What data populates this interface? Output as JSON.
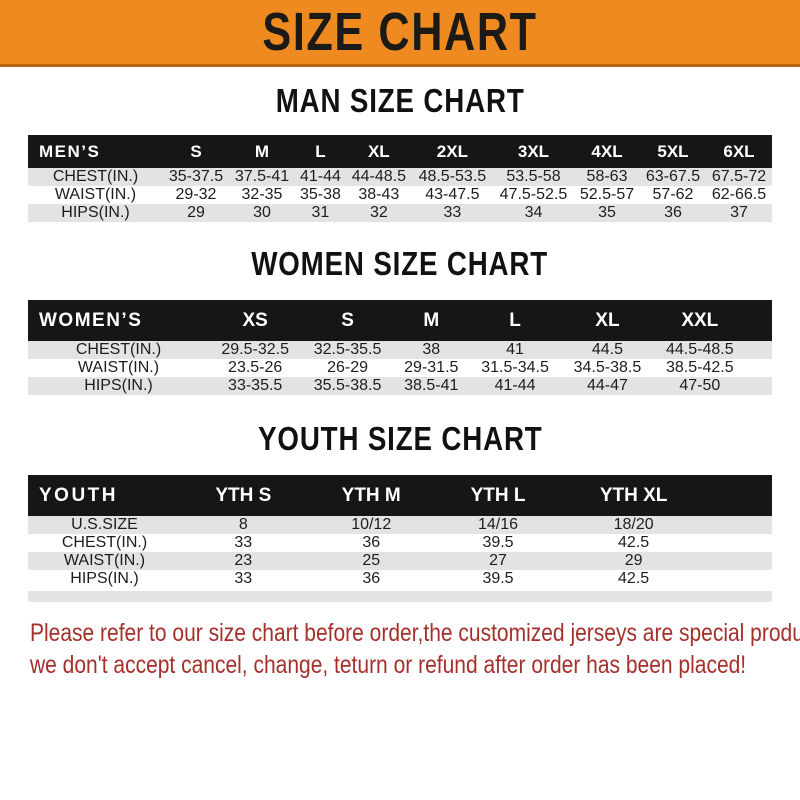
{
  "banner": {
    "title": "SIZE CHART"
  },
  "chart_data": [
    {
      "type": "table",
      "title": "MAN SIZE CHART",
      "corner_label": "MEN’S",
      "columns": [
        "S",
        "M",
        "L",
        "XL",
        "2XL",
        "3XL",
        "4XL",
        "5XL",
        "6XL"
      ],
      "rows": [
        {
          "label": "CHEST(IN.)",
          "values": [
            "35-37.5",
            "37.5-41",
            "41-44",
            "44-48.5",
            "48.5-53.5",
            "53.5-58",
            "58-63",
            "63-67.5",
            "67.5-72"
          ]
        },
        {
          "label": "WAIST(IN.)",
          "values": [
            "29-32",
            "32-35",
            "35-38",
            "38-43",
            "43-47.5",
            "47.5-52.5",
            "52.5-57",
            "57-62",
            "62-66.5"
          ]
        },
        {
          "label": "HIPS(IN.)",
          "values": [
            "29",
            "30",
            "31",
            "32",
            "33",
            "34",
            "35",
            "36",
            "37"
          ]
        }
      ]
    },
    {
      "type": "table",
      "title": "WOMEN SIZE CHART",
      "corner_label": "WOMEN’S",
      "columns": [
        "XS",
        "S",
        "M",
        "L",
        "XL",
        "XXL"
      ],
      "rows": [
        {
          "label": "CHEST(IN.)",
          "values": [
            "29.5-32.5",
            "32.5-35.5",
            "38",
            "41",
            "44.5",
            "44.5-48.5"
          ]
        },
        {
          "label": "WAIST(IN.)",
          "values": [
            "23.5-26",
            "26-29",
            "29-31.5",
            "31.5-34.5",
            "34.5-38.5",
            "38.5-42.5"
          ]
        },
        {
          "label": "HIPS(IN.)",
          "values": [
            "33-35.5",
            "35.5-38.5",
            "38.5-41",
            "41-44",
            "44-47",
            "47-50"
          ]
        }
      ]
    },
    {
      "type": "table",
      "title": "YOUTH SIZE CHART",
      "corner_label": "YOUTH",
      "columns": [
        "YTH S",
        "YTH M",
        "YTH L",
        "YTH XL"
      ],
      "rows": [
        {
          "label": "U.S.SIZE",
          "values": [
            "8",
            "10/12",
            "14/16",
            "18/20"
          ]
        },
        {
          "label": "CHEST(IN.)",
          "values": [
            "33",
            "36",
            "39.5",
            "42.5"
          ]
        },
        {
          "label": "WAIST(IN.)",
          "values": [
            "23",
            "25",
            "27",
            "29"
          ]
        },
        {
          "label": "HIPS(IN.)",
          "values": [
            "33",
            "36",
            "39.5",
            "42.5"
          ]
        }
      ]
    }
  ],
  "footer": {
    "line1": "Please refer to our size chart before order,the customized jerseys are special products,",
    "line2": "we don't accept cancel, change, teturn or refund after order has been placed!"
  },
  "colors": {
    "banner_bg": "#ee8a1f",
    "header_bar": "#161616",
    "stripe_gray": "#e3e3e3",
    "footer_text": "#a5302a"
  }
}
